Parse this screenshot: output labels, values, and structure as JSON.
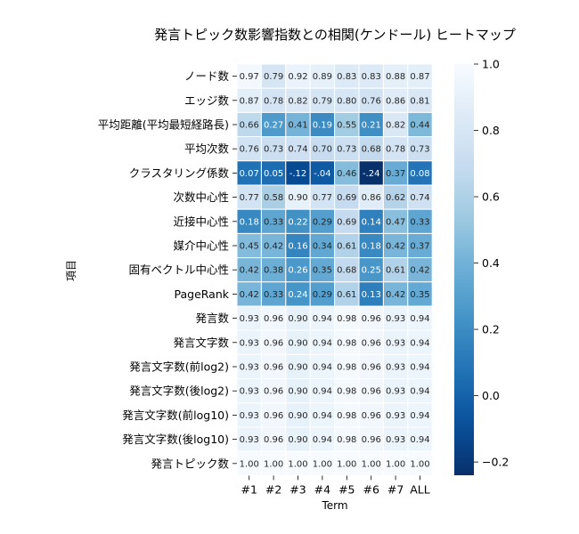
{
  "chart_data": {
    "type": "heatmap",
    "title": "発言トピック数影響指数との相関(ケンドール) ヒートマップ",
    "xlabel": "Term",
    "ylabel": "項目",
    "columns": [
      "#1",
      "#2",
      "#3",
      "#4",
      "#5",
      "#6",
      "#7",
      "ALL"
    ],
    "rows": [
      "ノード数",
      "エッジ数",
      "平均距離(平均最短経路長)",
      "平均次数",
      "クラスタリング係数",
      "次数中心性",
      "近接中心性",
      "媒介中心性",
      "固有ベクトル中心性",
      "PageRank",
      "発言数",
      "発言文字数",
      "発言文字数(前log2)",
      "発言文字数(後log2)",
      "発言文字数(前log10)",
      "発言文字数(後log10)",
      "発言トピック数"
    ],
    "values": [
      [
        0.97,
        0.79,
        0.92,
        0.89,
        0.83,
        0.83,
        0.88,
        0.87
      ],
      [
        0.87,
        0.78,
        0.82,
        0.79,
        0.8,
        0.76,
        0.86,
        0.81
      ],
      [
        0.66,
        0.27,
        0.41,
        0.19,
        0.55,
        0.21,
        0.82,
        0.44
      ],
      [
        0.76,
        0.73,
        0.74,
        0.7,
        0.73,
        0.68,
        0.78,
        0.73
      ],
      [
        0.07,
        0.05,
        -0.12,
        -0.04,
        0.46,
        -0.24,
        0.37,
        0.08
      ],
      [
        0.77,
        0.58,
        0.9,
        0.77,
        0.69,
        0.86,
        0.62,
        0.74
      ],
      [
        0.18,
        0.33,
        0.22,
        0.29,
        0.69,
        0.14,
        0.47,
        0.33
      ],
      [
        0.45,
        0.42,
        0.16,
        0.34,
        0.61,
        0.18,
        0.42,
        0.37
      ],
      [
        0.42,
        0.38,
        0.26,
        0.35,
        0.68,
        0.25,
        0.61,
        0.42
      ],
      [
        0.42,
        0.33,
        0.24,
        0.29,
        0.61,
        0.13,
        0.42,
        0.35
      ],
      [
        0.93,
        0.96,
        0.9,
        0.94,
        0.98,
        0.96,
        0.93,
        0.94
      ],
      [
        0.93,
        0.96,
        0.9,
        0.94,
        0.98,
        0.96,
        0.93,
        0.94
      ],
      [
        0.93,
        0.96,
        0.9,
        0.94,
        0.98,
        0.96,
        0.93,
        0.94
      ],
      [
        0.93,
        0.96,
        0.9,
        0.94,
        0.98,
        0.96,
        0.93,
        0.94
      ],
      [
        0.93,
        0.96,
        0.9,
        0.94,
        0.98,
        0.96,
        0.93,
        0.94
      ],
      [
        0.93,
        0.96,
        0.9,
        0.94,
        0.98,
        0.96,
        0.93,
        0.94
      ],
      [
        1.0,
        1.0,
        1.0,
        1.0,
        1.0,
        1.0,
        1.0,
        1.0
      ]
    ],
    "vmin": -0.24,
    "vmax": 1.0,
    "colormap": "Blues_r",
    "colorbar_ticks": [
      "1.0",
      "0.8",
      "0.6",
      "0.4",
      "0.2",
      "0.0",
      "−0.2"
    ],
    "colorbar_tick_values": [
      1.0,
      0.8,
      0.6,
      0.4,
      0.2,
      0.0,
      -0.2
    ],
    "annotated": true,
    "cell_borders_color": "#ffffff"
  }
}
